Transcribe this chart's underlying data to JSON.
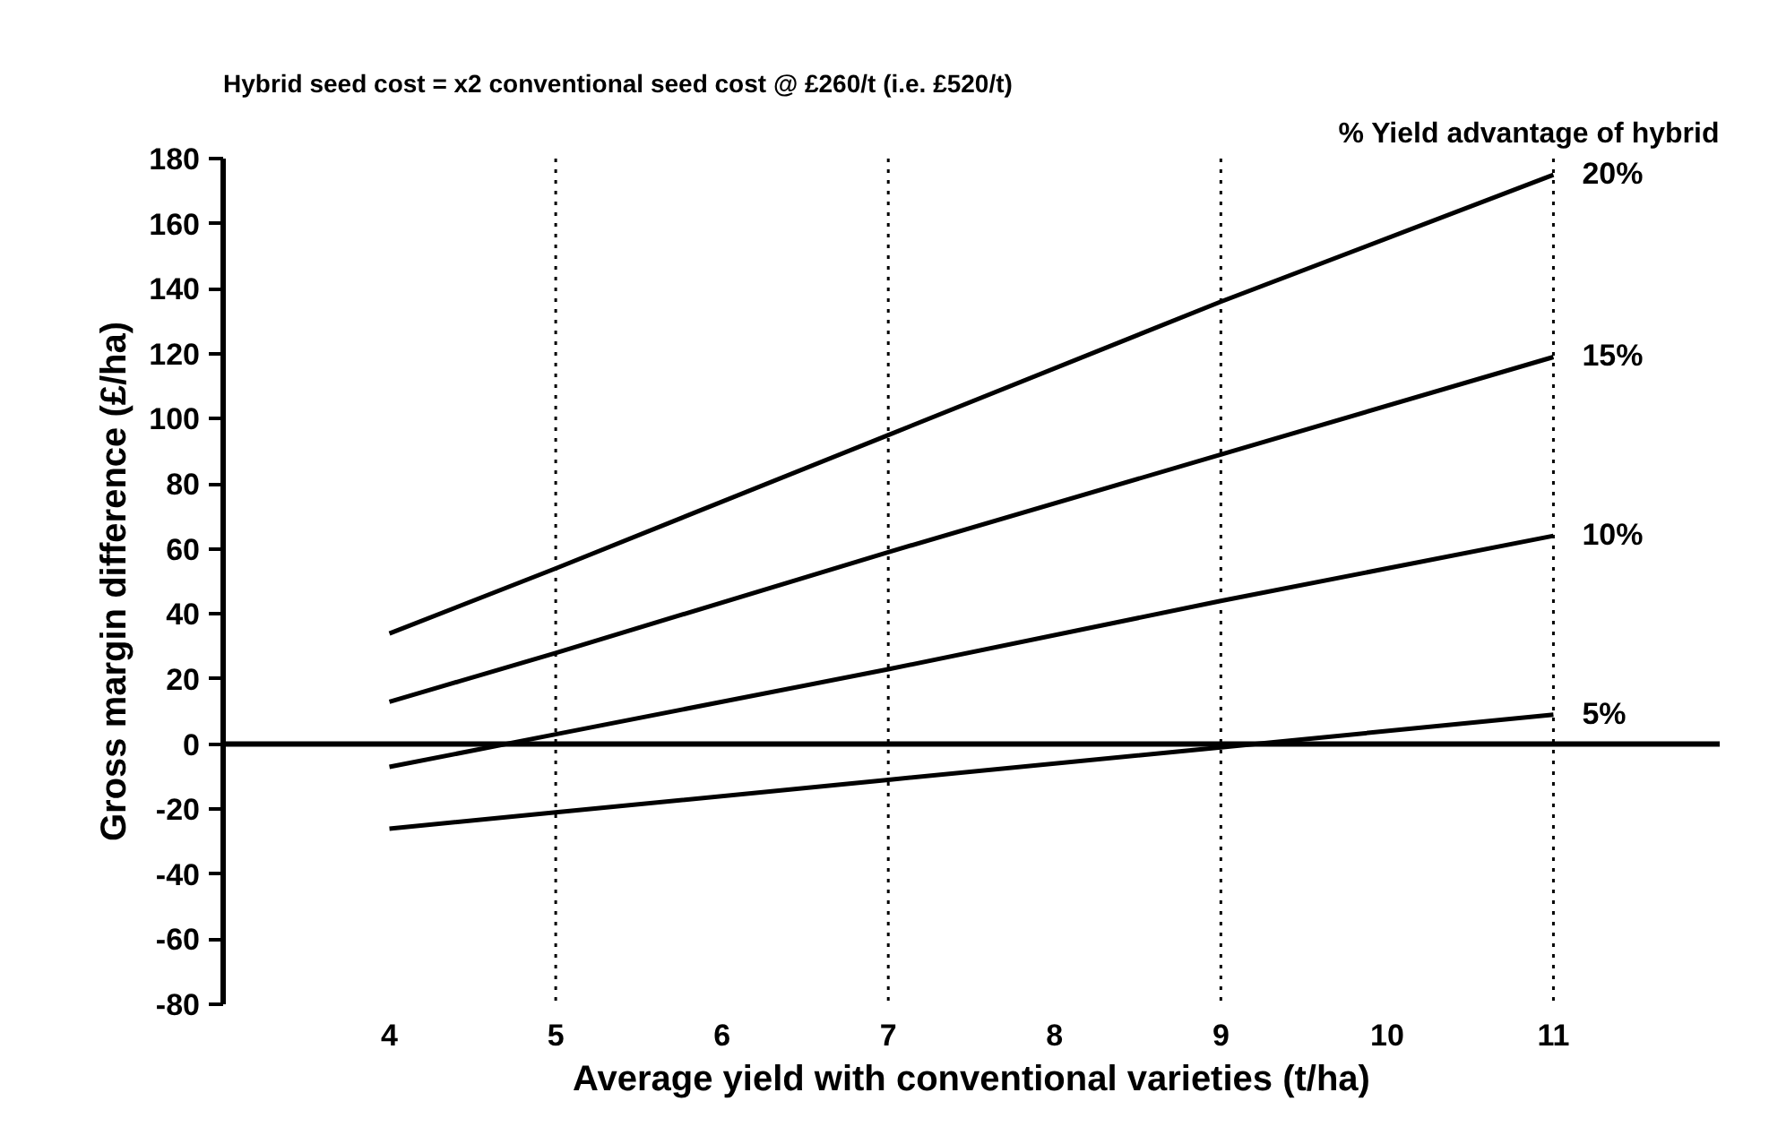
{
  "chart_data": {
    "type": "line",
    "title": "Hybrid seed cost = x2 conventional seed cost @ £260/t (i.e. £520/t)",
    "xlabel": "Average yield with conventional varieties (t/ha)",
    "ylabel": "Gross margin difference (£/ha)",
    "legend_title": "% Yield advantage of hybrid",
    "x": [
      4,
      5,
      7,
      9,
      11
    ],
    "series": [
      {
        "name": "20%",
        "color": "#000000",
        "values": [
          34,
          54,
          95,
          136,
          175
        ]
      },
      {
        "name": "15%",
        "color": "#000000",
        "values": [
          13,
          28,
          59,
          89,
          119
        ]
      },
      {
        "name": "10%",
        "color": "#000000",
        "values": [
          -7,
          3,
          23,
          44,
          64
        ]
      },
      {
        "name": "5%",
        "color": "#000000",
        "values": [
          -26,
          -21,
          -11,
          -1,
          9
        ]
      }
    ],
    "xlim": [
      3,
      12
    ],
    "xticks": [
      4,
      5,
      6,
      7,
      8,
      9,
      10,
      11
    ],
    "ylim": [
      -80,
      180
    ],
    "yticks": [
      -80,
      -60,
      -40,
      -20,
      0,
      20,
      40,
      60,
      80,
      100,
      120,
      140,
      160,
      180
    ],
    "ref_lines": [
      {
        "axis": "y",
        "value": 0,
        "color": "#000000",
        "line_style": "solid"
      },
      {
        "axis": "x",
        "value": 5,
        "color": "#000000",
        "line_style": "dotted"
      },
      {
        "axis": "x",
        "value": 7,
        "color": "#000000",
        "line_style": "dotted"
      },
      {
        "axis": "x",
        "value": 9,
        "color": "#000000",
        "line_style": "dotted"
      },
      {
        "axis": "x",
        "value": 11,
        "color": "#000000",
        "line_style": "dotted"
      }
    ],
    "grid": false,
    "legend": "top right",
    "marker": "none",
    "line_style": "solid"
  }
}
